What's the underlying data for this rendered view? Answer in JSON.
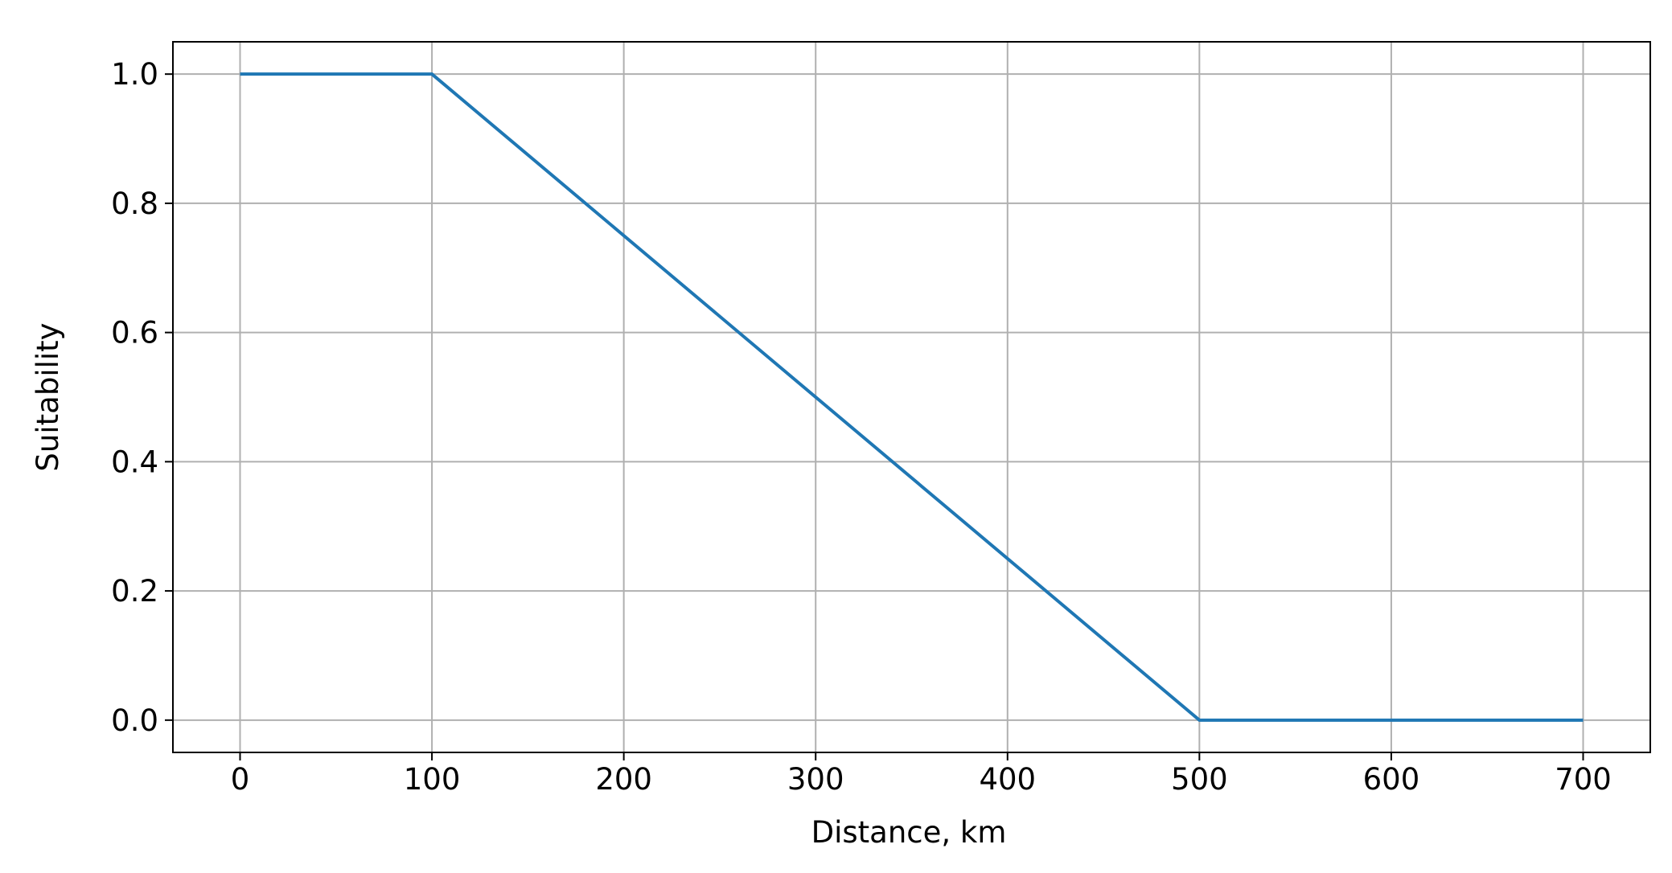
{
  "chart_data": {
    "type": "line",
    "xlabel": "Distance, km",
    "ylabel": "Suitability",
    "x": [
      0,
      100,
      500,
      700
    ],
    "series": [
      {
        "color": "#1f77b4",
        "values": [
          1.0,
          1.0,
          0.0,
          0.0
        ]
      }
    ],
    "xlim": [
      -35,
      735
    ],
    "ylim": [
      -0.05,
      1.05
    ],
    "xticks": [
      0,
      100,
      200,
      300,
      400,
      500,
      600,
      700
    ],
    "yticks": [
      {
        "value": 0,
        "label": "0.0"
      },
      {
        "value": 0.2,
        "label": "0.2"
      },
      {
        "value": 0.4,
        "label": "0.4"
      },
      {
        "value": 0.6,
        "label": "0.6"
      },
      {
        "value": 0.8,
        "label": "0.8"
      },
      {
        "value": 1.0,
        "label": "1.0"
      }
    ],
    "grid": true
  }
}
